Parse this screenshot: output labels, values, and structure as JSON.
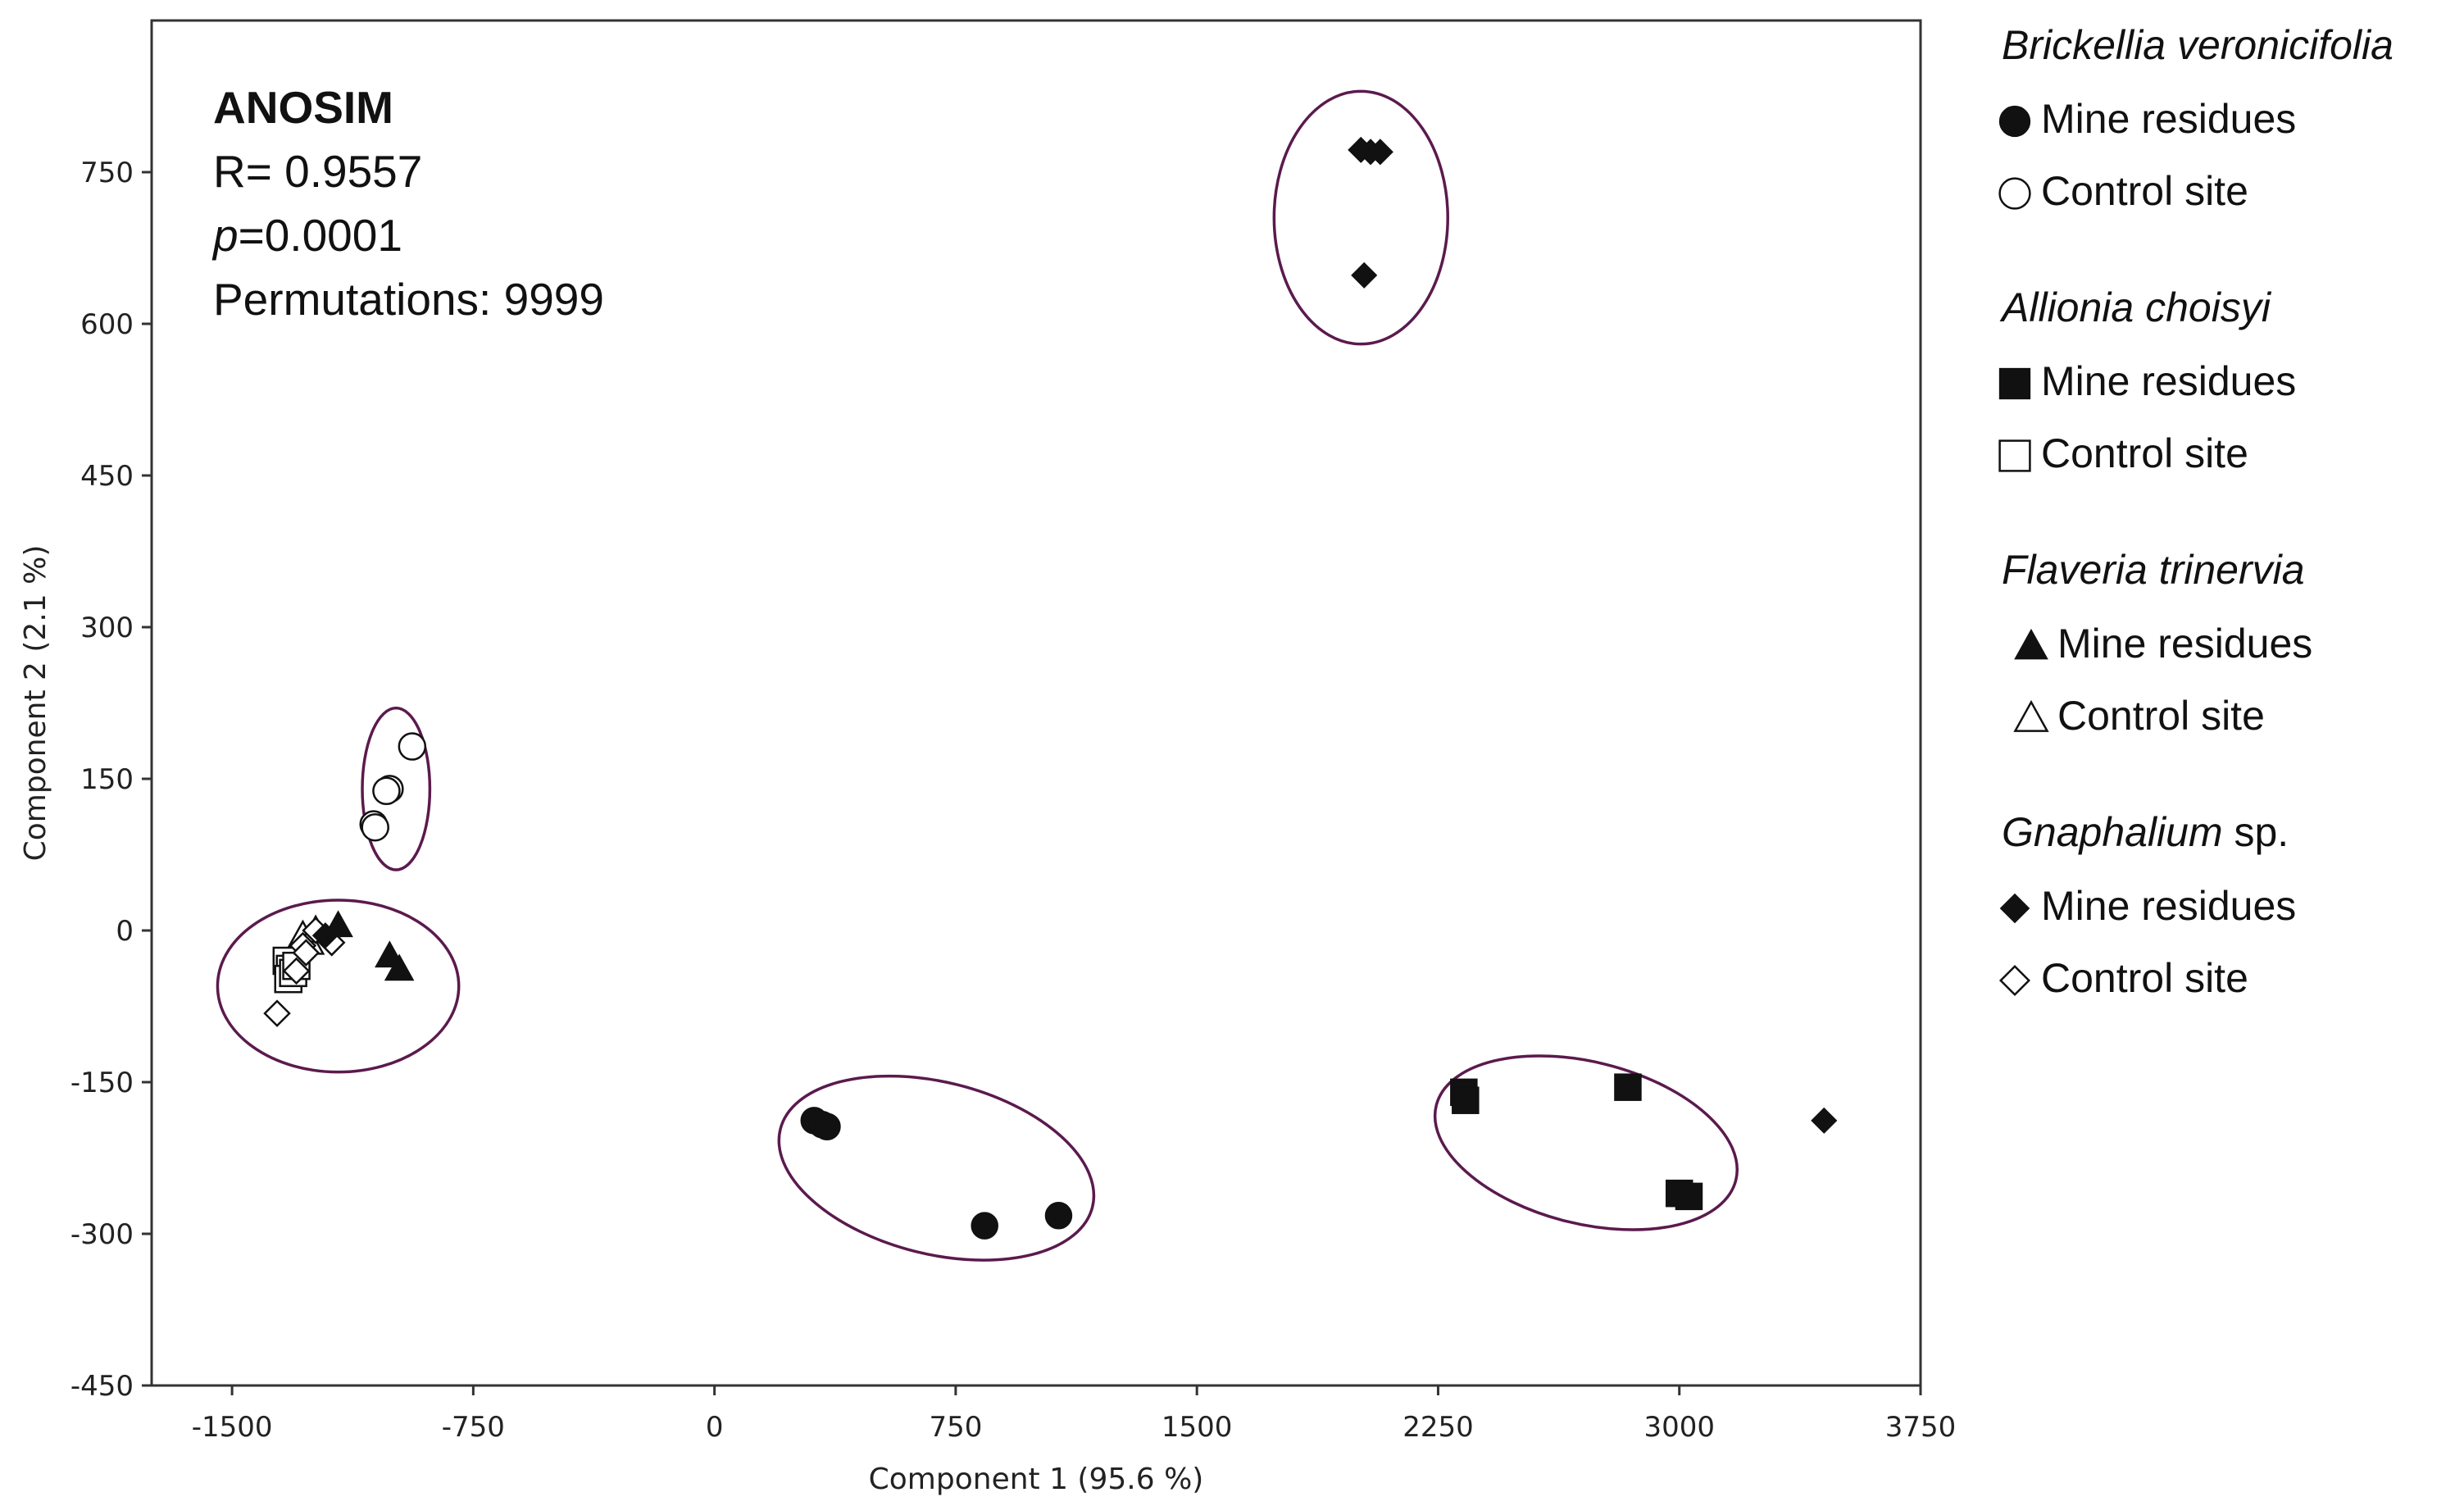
{
  "annotation": {
    "title": "ANOSIM",
    "r_line": "R= 0.9557",
    "p_italic": "p",
    "p_value": "=0.0001",
    "permutations": "Permutations: 9999"
  },
  "legend": {
    "groups": [
      {
        "species": "Brickellia veronicifolia",
        "suffix": "",
        "marker": "circle",
        "entries": [
          {
            "label": "Mine residues",
            "filled": true
          },
          {
            "label": "Control site",
            "filled": false
          }
        ]
      },
      {
        "species": "Allionia choisyi",
        "suffix": "",
        "marker": "square",
        "entries": [
          {
            "label": "Mine residues",
            "filled": true
          },
          {
            "label": "Control site",
            "filled": false
          }
        ]
      },
      {
        "species": "Flaveria trinervia",
        "suffix": "",
        "marker": "triangle",
        "entries": [
          {
            "label": "Mine residues",
            "filled": true
          },
          {
            "label": "Control site",
            "filled": false
          }
        ]
      },
      {
        "species": "Gnaphalium",
        "suffix": " sp.",
        "marker": "diamond",
        "entries": [
          {
            "label": "Mine residues",
            "filled": true
          },
          {
            "label": "Control site",
            "filled": false
          }
        ]
      }
    ]
  },
  "colors": {
    "ellipse": "#5b1a4d",
    "marker": "#111111",
    "axis": "#333333"
  },
  "chart_data": {
    "type": "scatter",
    "title": "",
    "xlabel": "Component 1 (95.6 %)",
    "ylabel": "Component 2 (2.1 %)",
    "xlim": [
      -1750,
      3750
    ],
    "ylim": [
      -450,
      900
    ],
    "xticks": [
      -1500,
      -750,
      0,
      750,
      1500,
      2250,
      3000,
      3750
    ],
    "yticks": [
      750,
      600,
      450,
      300,
      150,
      0,
      -150,
      -300,
      -450
    ],
    "xtick_labels": [
      "-1500",
      "-750",
      "0",
      "750",
      "1500",
      "2250",
      "3000",
      "3750"
    ],
    "ytick_labels": [
      "750",
      "600",
      "450",
      "300",
      "150",
      "0",
      "-150",
      "-300",
      "-450"
    ],
    "grid": false,
    "legend_position": "right",
    "series": [
      {
        "name": "Brickellia veronicifolia – Mine residues",
        "marker": "circle",
        "filled": true,
        "x": [
          310,
          335,
          350,
          840,
          1070
        ],
        "y": [
          -188,
          -192,
          -194,
          -292,
          -282
        ]
      },
      {
        "name": "Brickellia veronicifolia – Control site",
        "marker": "circle",
        "filled": false,
        "x": [
          -940,
          -1010,
          -1020,
          -1060,
          -1055
        ],
        "y": [
          182,
          140,
          138,
          105,
          102
        ]
      },
      {
        "name": "Allionia choisyi – Mine residues",
        "marker": "square",
        "filled": true,
        "x": [
          2330,
          2335,
          2840,
          3000,
          3030
        ],
        "y": [
          -160,
          -168,
          -155,
          -260,
          -263
        ]
      },
      {
        "name": "Allionia choisyi – Control site",
        "marker": "square",
        "filled": false,
        "x": [
          -1330,
          -1320,
          -1325,
          -1310,
          -1300
        ],
        "y": [
          -30,
          -38,
          -48,
          -42,
          -35
        ]
      },
      {
        "name": "Flaveria trinervia – Mine residues",
        "marker": "triangle",
        "filled": true,
        "x": [
          -1170,
          -1010,
          -980
        ],
        "y": [
          5,
          -25,
          -38
        ]
      },
      {
        "name": "Flaveria trinervia – Control site",
        "marker": "triangle",
        "filled": false,
        "x": [
          -1280,
          -1260,
          -1240
        ],
        "y": [
          -5,
          -12,
          0
        ]
      },
      {
        "name": "Gnaphalium sp. – Mine residues",
        "marker": "diamond",
        "filled": true,
        "x": [
          2010,
          2040,
          2070,
          2020,
          3450,
          -1210
        ],
        "y": [
          772,
          770,
          770,
          648,
          -188,
          -5
        ]
      },
      {
        "name": "Gnaphalium sp. – Control site",
        "marker": "diamond",
        "filled": false,
        "x": [
          -1360,
          -1300,
          -1280,
          -1240,
          -1190,
          -1270
        ],
        "y": [
          -82,
          -40,
          -15,
          0,
          -12,
          -22
        ]
      }
    ],
    "ellipses": [
      {
        "cx": 2010,
        "cy": 705,
        "rx": 270,
        "ry": 125,
        "angle": 0
      },
      {
        "cx": -990,
        "cy": 140,
        "rx": 105,
        "ry": 80,
        "angle": 0
      },
      {
        "cx": -1170,
        "cy": -55,
        "rx": 375,
        "ry": 85,
        "angle": 0
      },
      {
        "cx": 690,
        "cy": -235,
        "rx": 500,
        "ry": 85,
        "angle": 14
      },
      {
        "cx": 2710,
        "cy": -210,
        "rx": 480,
        "ry": 80,
        "angle": 14
      }
    ]
  }
}
